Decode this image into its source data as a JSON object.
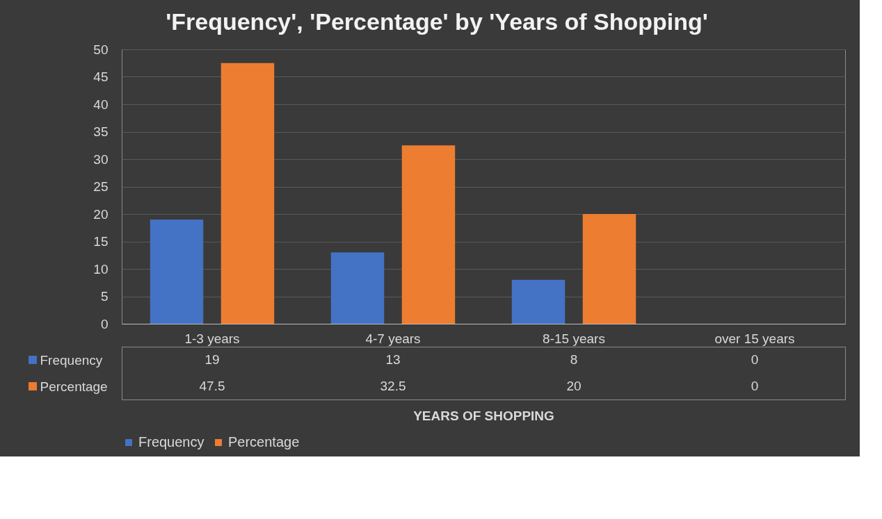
{
  "chart_data": {
    "type": "bar",
    "title": "'Frequency', 'Percentage' by 'Years of Shopping'",
    "xlabel": "YEARS OF SHOPPING",
    "categories": [
      "1-3 years",
      "4-7 years",
      "8-15 years",
      "over 15 years"
    ],
    "series": [
      {
        "name": "Frequency",
        "color": "#4472c4",
        "values": [
          19,
          13,
          8,
          0
        ]
      },
      {
        "name": "Percentage",
        "color": "#ed7d31",
        "values": [
          47.5,
          32.5,
          20,
          0
        ]
      }
    ],
    "ylim": [
      0,
      50
    ],
    "yticks": [
      0,
      5,
      10,
      15,
      20,
      25,
      30,
      35,
      40,
      45,
      50
    ],
    "grid": "y",
    "legend": "bottom",
    "data_labels": true
  }
}
